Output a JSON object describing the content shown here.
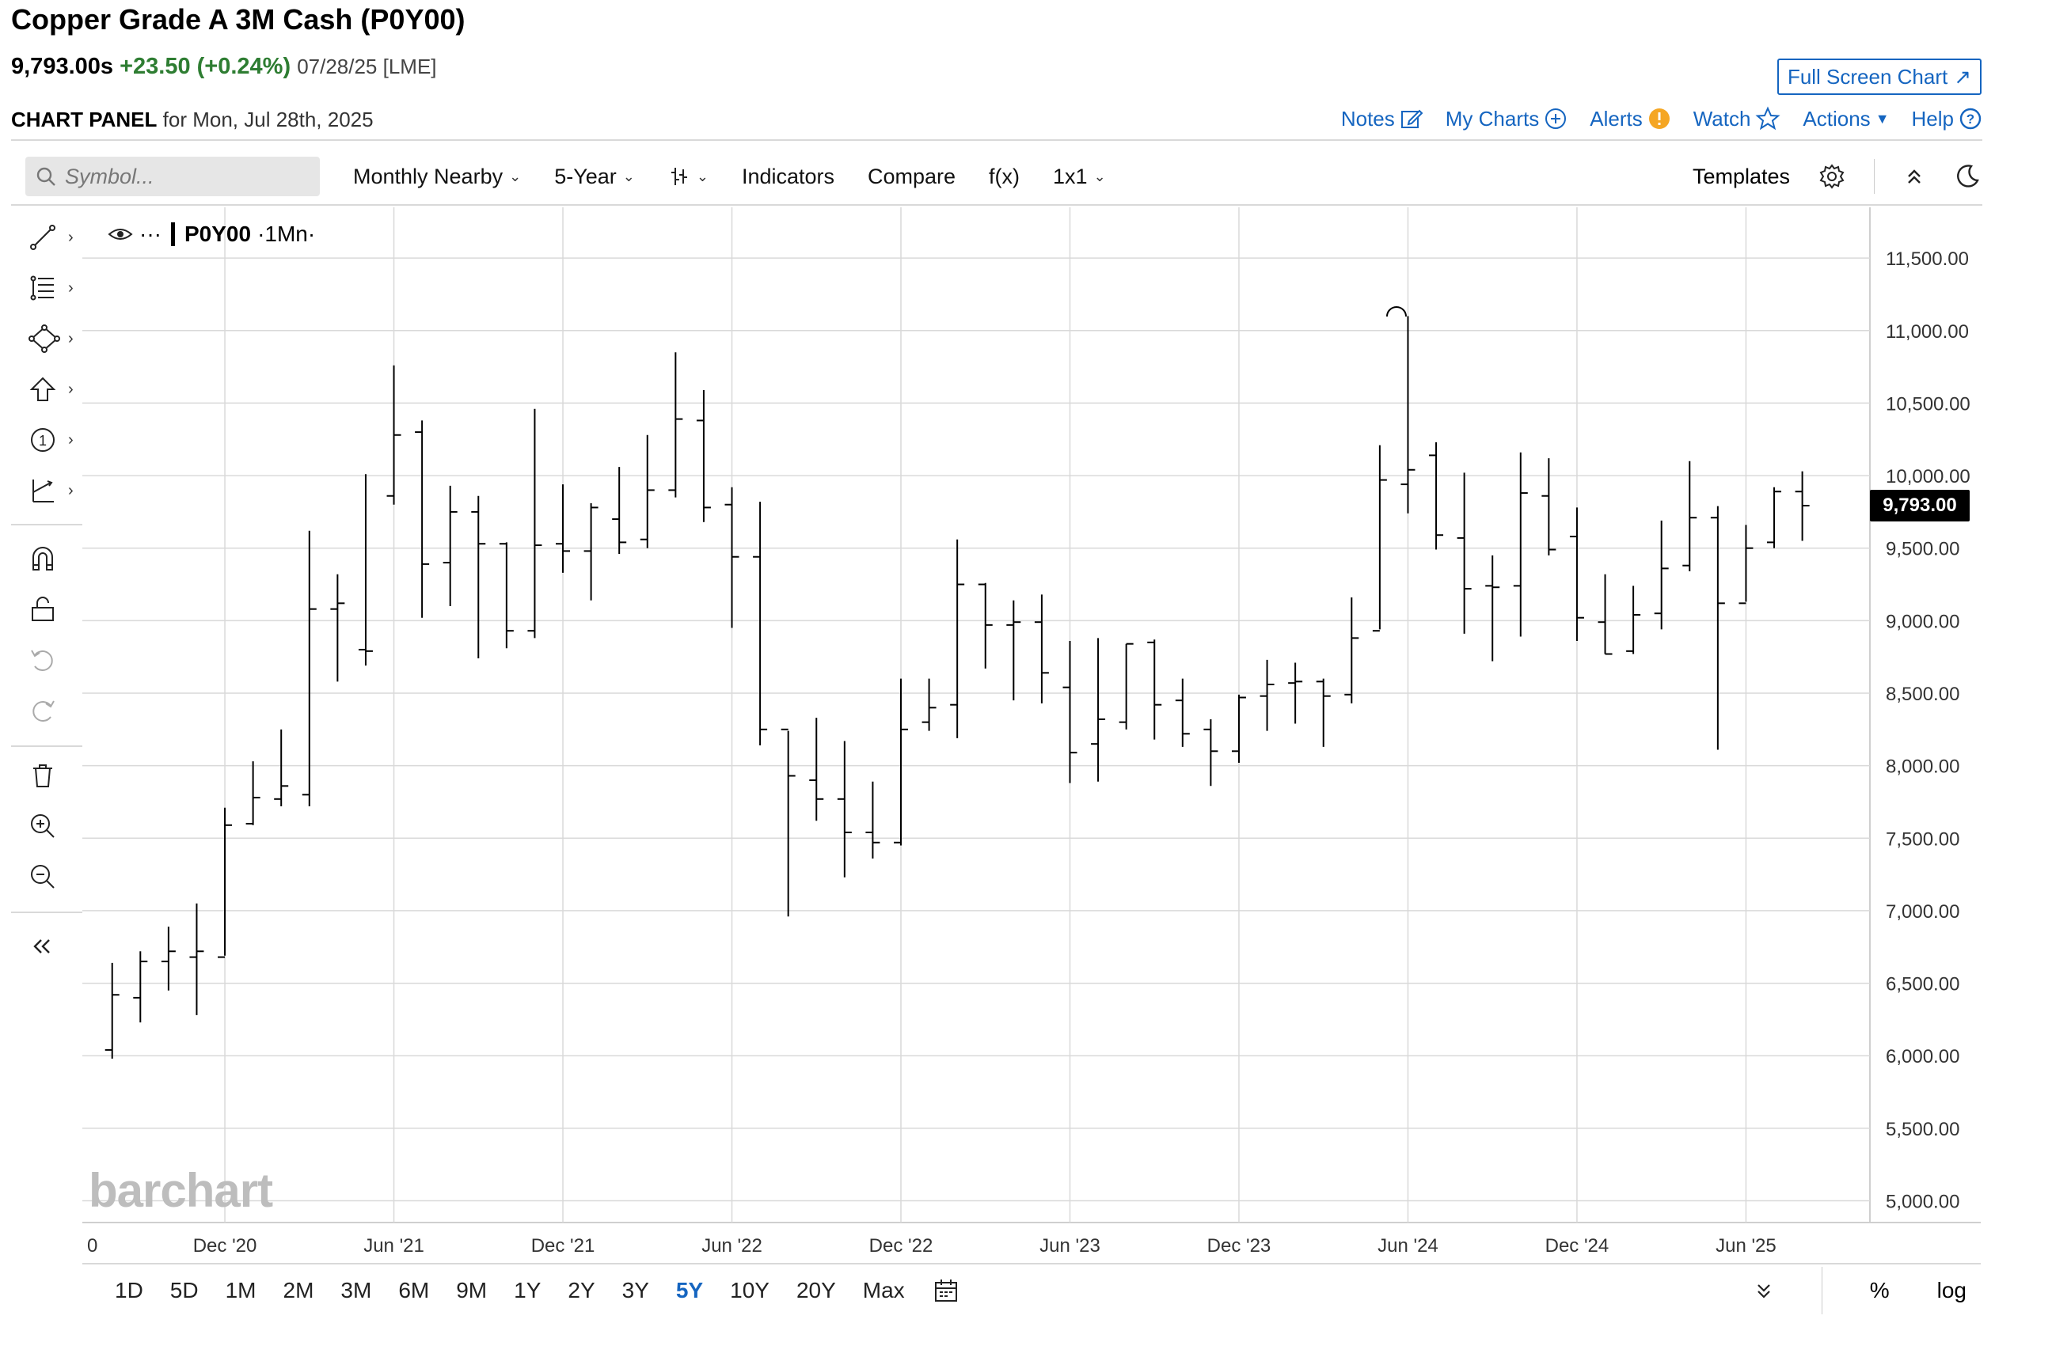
{
  "header": {
    "title": "Copper Grade A 3M Cash (P0Y00)",
    "last": "9,793.00s",
    "change": "+23.50 (+0.24%)",
    "date_exchange": "07/28/25 [LME]",
    "panel_label": "CHART PANEL",
    "panel_date": "for Mon, Jul 28th, 2025",
    "full_screen_label": "Full Screen Chart",
    "links": {
      "notes": "Notes",
      "my_charts": "My Charts",
      "alerts": "Alerts",
      "watch": "Watch",
      "actions": "Actions",
      "help": "Help"
    }
  },
  "toolbar": {
    "symbol_placeholder": "Symbol...",
    "monthly_nearby": "Monthly Nearby",
    "period": "5-Year",
    "indicators": "Indicators",
    "compare": "Compare",
    "fx": "f(x)",
    "layout": "1x1",
    "templates": "Templates"
  },
  "legend": {
    "symbol": "P0Y00",
    "interval": "·1Mn·",
    "dots": "···"
  },
  "watermark": "barchart",
  "price_tag": "9,793.00",
  "timeframes": [
    "1D",
    "5D",
    "1M",
    "2M",
    "3M",
    "6M",
    "9M",
    "1Y",
    "2Y",
    "3Y",
    "5Y",
    "10Y",
    "20Y",
    "Max"
  ],
  "active_timeframe": "5Y",
  "bottom_right": {
    "percent": "%",
    "log": "log"
  },
  "colors": {
    "accent": "#1565c0",
    "positive": "#2e7d32",
    "bars": "#000000",
    "grid": "#d9d9d9"
  },
  "chart_data": {
    "type": "ohlc",
    "title": "Copper Grade A 3M Cash (P0Y00)",
    "interval": "1 month",
    "y_ticks": [
      "5,000.00",
      "5,500.00",
      "6,000.00",
      "6,500.00",
      "7,000.00",
      "7,500.00",
      "8,000.00",
      "8,500.00",
      "9,000.00",
      "9,500.00",
      "10,000.00",
      "10,500.00",
      "11,000.00",
      "11,500.00"
    ],
    "y_tick_values": [
      5000,
      5500,
      6000,
      6500,
      7000,
      7500,
      8000,
      8500,
      9000,
      9500,
      10000,
      10500,
      11000,
      11500
    ],
    "x_ticks": [
      "0",
      "Dec '20",
      "Jun '21",
      "Dec '21",
      "Jun '22",
      "Dec '22",
      "Jun '23",
      "Dec '23",
      "Jun '24",
      "Dec '24",
      "Jun '25"
    ],
    "x_tick_dates": [
      "2020-07",
      "2020-12",
      "2021-06",
      "2021-12",
      "2022-06",
      "2022-12",
      "2023-06",
      "2023-12",
      "2024-06",
      "2024-12",
      "2025-06"
    ],
    "ylim": [
      4850,
      11850
    ],
    "grid": true,
    "last_value": 9793,
    "bars": [
      {
        "date": "2020-08",
        "open": 6040,
        "high": 6640,
        "low": 5980,
        "close": 6420
      },
      {
        "date": "2020-09",
        "open": 6400,
        "high": 6720,
        "low": 6230,
        "close": 6650
      },
      {
        "date": "2020-10",
        "open": 6650,
        "high": 6890,
        "low": 6450,
        "close": 6720
      },
      {
        "date": "2020-11",
        "open": 6680,
        "high": 7050,
        "low": 6280,
        "close": 6720
      },
      {
        "date": "2020-12",
        "open": 6680,
        "high": 7710,
        "low": 6690,
        "close": 7590
      },
      {
        "date": "2021-01",
        "open": 7600,
        "high": 8030,
        "low": 7590,
        "close": 7780
      },
      {
        "date": "2021-02",
        "open": 7770,
        "high": 8250,
        "low": 7720,
        "close": 7860
      },
      {
        "date": "2021-03",
        "open": 7800,
        "high": 9620,
        "low": 7720,
        "close": 9080
      },
      {
        "date": "2021-04",
        "open": 9080,
        "high": 9320,
        "low": 8580,
        "close": 9120
      },
      {
        "date": "2021-05",
        "open": 8800,
        "high": 10010,
        "low": 8690,
        "close": 8790
      },
      {
        "date": "2021-06",
        "open": 9860,
        "high": 10760,
        "low": 9800,
        "close": 10280
      },
      {
        "date": "2021-07",
        "open": 10300,
        "high": 10380,
        "low": 9020,
        "close": 9390
      },
      {
        "date": "2021-08",
        "open": 9400,
        "high": 9930,
        "low": 9100,
        "close": 9750
      },
      {
        "date": "2021-09",
        "open": 9750,
        "high": 9860,
        "low": 8740,
        "close": 9530
      },
      {
        "date": "2021-10",
        "open": 9530,
        "high": 9540,
        "low": 8810,
        "close": 8930
      },
      {
        "date": "2021-11",
        "open": 8930,
        "high": 10460,
        "low": 8880,
        "close": 9520
      },
      {
        "date": "2021-12",
        "open": 9530,
        "high": 9940,
        "low": 9330,
        "close": 9480
      },
      {
        "date": "2022-01",
        "open": 9480,
        "high": 9810,
        "low": 9140,
        "close": 9780
      },
      {
        "date": "2022-02",
        "open": 9700,
        "high": 10060,
        "low": 9460,
        "close": 9540
      },
      {
        "date": "2022-03",
        "open": 9560,
        "high": 10280,
        "low": 9500,
        "close": 9900
      },
      {
        "date": "2022-04",
        "open": 9900,
        "high": 10850,
        "low": 9850,
        "close": 10390
      },
      {
        "date": "2022-05",
        "open": 10380,
        "high": 10590,
        "low": 9680,
        "close": 9780
      },
      {
        "date": "2022-06",
        "open": 9800,
        "high": 9920,
        "low": 8950,
        "close": 9440
      },
      {
        "date": "2022-07",
        "open": 9440,
        "high": 9820,
        "low": 8140,
        "close": 8250
      },
      {
        "date": "2022-08",
        "open": 8250,
        "high": 8240,
        "low": 6960,
        "close": 7930
      },
      {
        "date": "2022-09",
        "open": 7900,
        "high": 8330,
        "low": 7620,
        "close": 7770
      },
      {
        "date": "2022-10",
        "open": 7770,
        "high": 8170,
        "low": 7230,
        "close": 7540
      },
      {
        "date": "2022-11",
        "open": 7540,
        "high": 7890,
        "low": 7360,
        "close": 7470
      },
      {
        "date": "2022-12",
        "open": 7470,
        "high": 8600,
        "low": 7450,
        "close": 8250
      },
      {
        "date": "2023-01",
        "open": 8300,
        "high": 8600,
        "low": 8240,
        "close": 8400
      },
      {
        "date": "2023-02",
        "open": 8420,
        "high": 9560,
        "low": 8190,
        "close": 9250
      },
      {
        "date": "2023-03",
        "open": 9250,
        "high": 9260,
        "low": 8670,
        "close": 8970
      },
      {
        "date": "2023-04",
        "open": 8970,
        "high": 9140,
        "low": 8450,
        "close": 8990
      },
      {
        "date": "2023-05",
        "open": 8990,
        "high": 9180,
        "low": 8430,
        "close": 8640
      },
      {
        "date": "2023-06",
        "open": 8540,
        "high": 8860,
        "low": 7880,
        "close": 8090
      },
      {
        "date": "2023-07",
        "open": 8150,
        "high": 8880,
        "low": 7890,
        "close": 8320
      },
      {
        "date": "2023-08",
        "open": 8300,
        "high": 8840,
        "low": 8250,
        "close": 8840
      },
      {
        "date": "2023-09",
        "open": 8850,
        "high": 8870,
        "low": 8180,
        "close": 8420
      },
      {
        "date": "2023-10",
        "open": 8450,
        "high": 8600,
        "low": 8130,
        "close": 8220
      },
      {
        "date": "2023-11",
        "open": 8250,
        "high": 8320,
        "low": 7860,
        "close": 8100
      },
      {
        "date": "2023-12",
        "open": 8100,
        "high": 8490,
        "low": 8020,
        "close": 8470
      },
      {
        "date": "2024-01",
        "open": 8480,
        "high": 8730,
        "low": 8240,
        "close": 8560
      },
      {
        "date": "2024-02",
        "open": 8570,
        "high": 8710,
        "low": 8290,
        "close": 8580
      },
      {
        "date": "2024-03",
        "open": 8580,
        "high": 8600,
        "low": 8130,
        "close": 8480
      },
      {
        "date": "2024-04",
        "open": 8490,
        "high": 9160,
        "low": 8430,
        "close": 8880
      },
      {
        "date": "2024-05",
        "open": 8930,
        "high": 10210,
        "low": 8940,
        "close": 9970
      },
      {
        "date": "2024-06",
        "open": 9940,
        "high": 11100,
        "low": 9740,
        "close": 10040
      },
      {
        "date": "2024-07",
        "open": 10140,
        "high": 10230,
        "low": 9490,
        "close": 9590
      },
      {
        "date": "2024-08",
        "open": 9570,
        "high": 10020,
        "low": 8910,
        "close": 9220
      },
      {
        "date": "2024-09",
        "open": 9240,
        "high": 9450,
        "low": 8720,
        "close": 9230
      },
      {
        "date": "2024-10",
        "open": 9240,
        "high": 10160,
        "low": 8890,
        "close": 9880
      },
      {
        "date": "2024-11",
        "open": 9860,
        "high": 10120,
        "low": 9450,
        "close": 9490
      },
      {
        "date": "2024-12",
        "open": 9580,
        "high": 9780,
        "low": 8860,
        "close": 9020
      },
      {
        "date": "2025-01",
        "open": 8990,
        "high": 9320,
        "low": 8770,
        "close": 8770
      },
      {
        "date": "2025-02",
        "open": 8790,
        "high": 9240,
        "low": 8770,
        "close": 9040
      },
      {
        "date": "2025-03",
        "open": 9050,
        "high": 9690,
        "low": 8940,
        "close": 9360
      },
      {
        "date": "2025-04",
        "open": 9380,
        "high": 10100,
        "low": 9340,
        "close": 9710
      },
      {
        "date": "2025-05",
        "open": 9710,
        "high": 9790,
        "low": 8110,
        "close": 9120
      },
      {
        "date": "2025-06",
        "open": 9120,
        "high": 9660,
        "low": 9130,
        "close": 9500
      },
      {
        "date": "2025-07",
        "open": 9540,
        "high": 9920,
        "low": 9500,
        "close": 9890
      },
      {
        "date": "2025-08",
        "open": 9890,
        "high": 10030,
        "low": 9550,
        "close": 9793
      }
    ]
  }
}
